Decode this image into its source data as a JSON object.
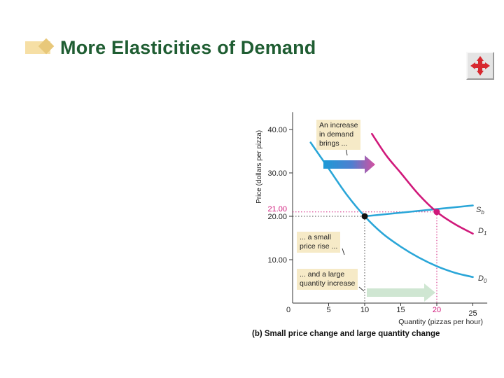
{
  "slide": {
    "title": "More Elasticities of Demand"
  },
  "nav_button": {
    "icon": "four-way-arrows-icon",
    "color": "#d7282f"
  },
  "chart_data": {
    "type": "line",
    "caption": "(b) Small price change and large quantity change",
    "xlabel": "Quantity (pizzas per hour)",
    "ylabel": "Price (dollars per pizza)",
    "xlim": [
      0,
      27
    ],
    "ylim": [
      0,
      44
    ],
    "x_ticks": [
      "0",
      "5",
      "10",
      "15",
      "20",
      "25"
    ],
    "y_ticks": [
      "10.00",
      "20.00",
      "30.00",
      "40.00"
    ],
    "highlight_x_tick": "20",
    "highlight_y_tick": "21.00",
    "series": [
      {
        "name": "S",
        "subscript": "b",
        "color": "#2aa6d8",
        "points": [
          [
            10,
            20
          ],
          [
            25,
            22.5
          ]
        ]
      },
      {
        "name": "D",
        "subscript": "0",
        "color": "#2aa6d8",
        "points": [
          [
            2.5,
            37
          ],
          [
            5,
            31
          ],
          [
            7.5,
            25
          ],
          [
            10,
            20
          ],
          [
            12.5,
            16
          ],
          [
            15,
            13
          ],
          [
            17.5,
            10.5
          ],
          [
            20,
            8.5
          ],
          [
            22.5,
            7
          ],
          [
            25,
            6
          ]
        ]
      },
      {
        "name": "D",
        "subscript": "1",
        "color": "#d0187a",
        "points": [
          [
            11,
            39
          ],
          [
            13,
            34
          ],
          [
            15,
            30
          ],
          [
            17.5,
            25
          ],
          [
            20,
            21
          ],
          [
            22.5,
            18.2
          ],
          [
            25,
            16
          ]
        ]
      }
    ],
    "points": [
      {
        "x": 10,
        "y": 20,
        "color": "#111111"
      },
      {
        "x": 20,
        "y": 21,
        "color": "#d0187a"
      }
    ],
    "annotations": [
      [
        "An increase",
        "in demand",
        "brings ..."
      ],
      [
        "... a small",
        "price rise ..."
      ],
      [
        "... and a large",
        "quantity increase"
      ]
    ]
  }
}
